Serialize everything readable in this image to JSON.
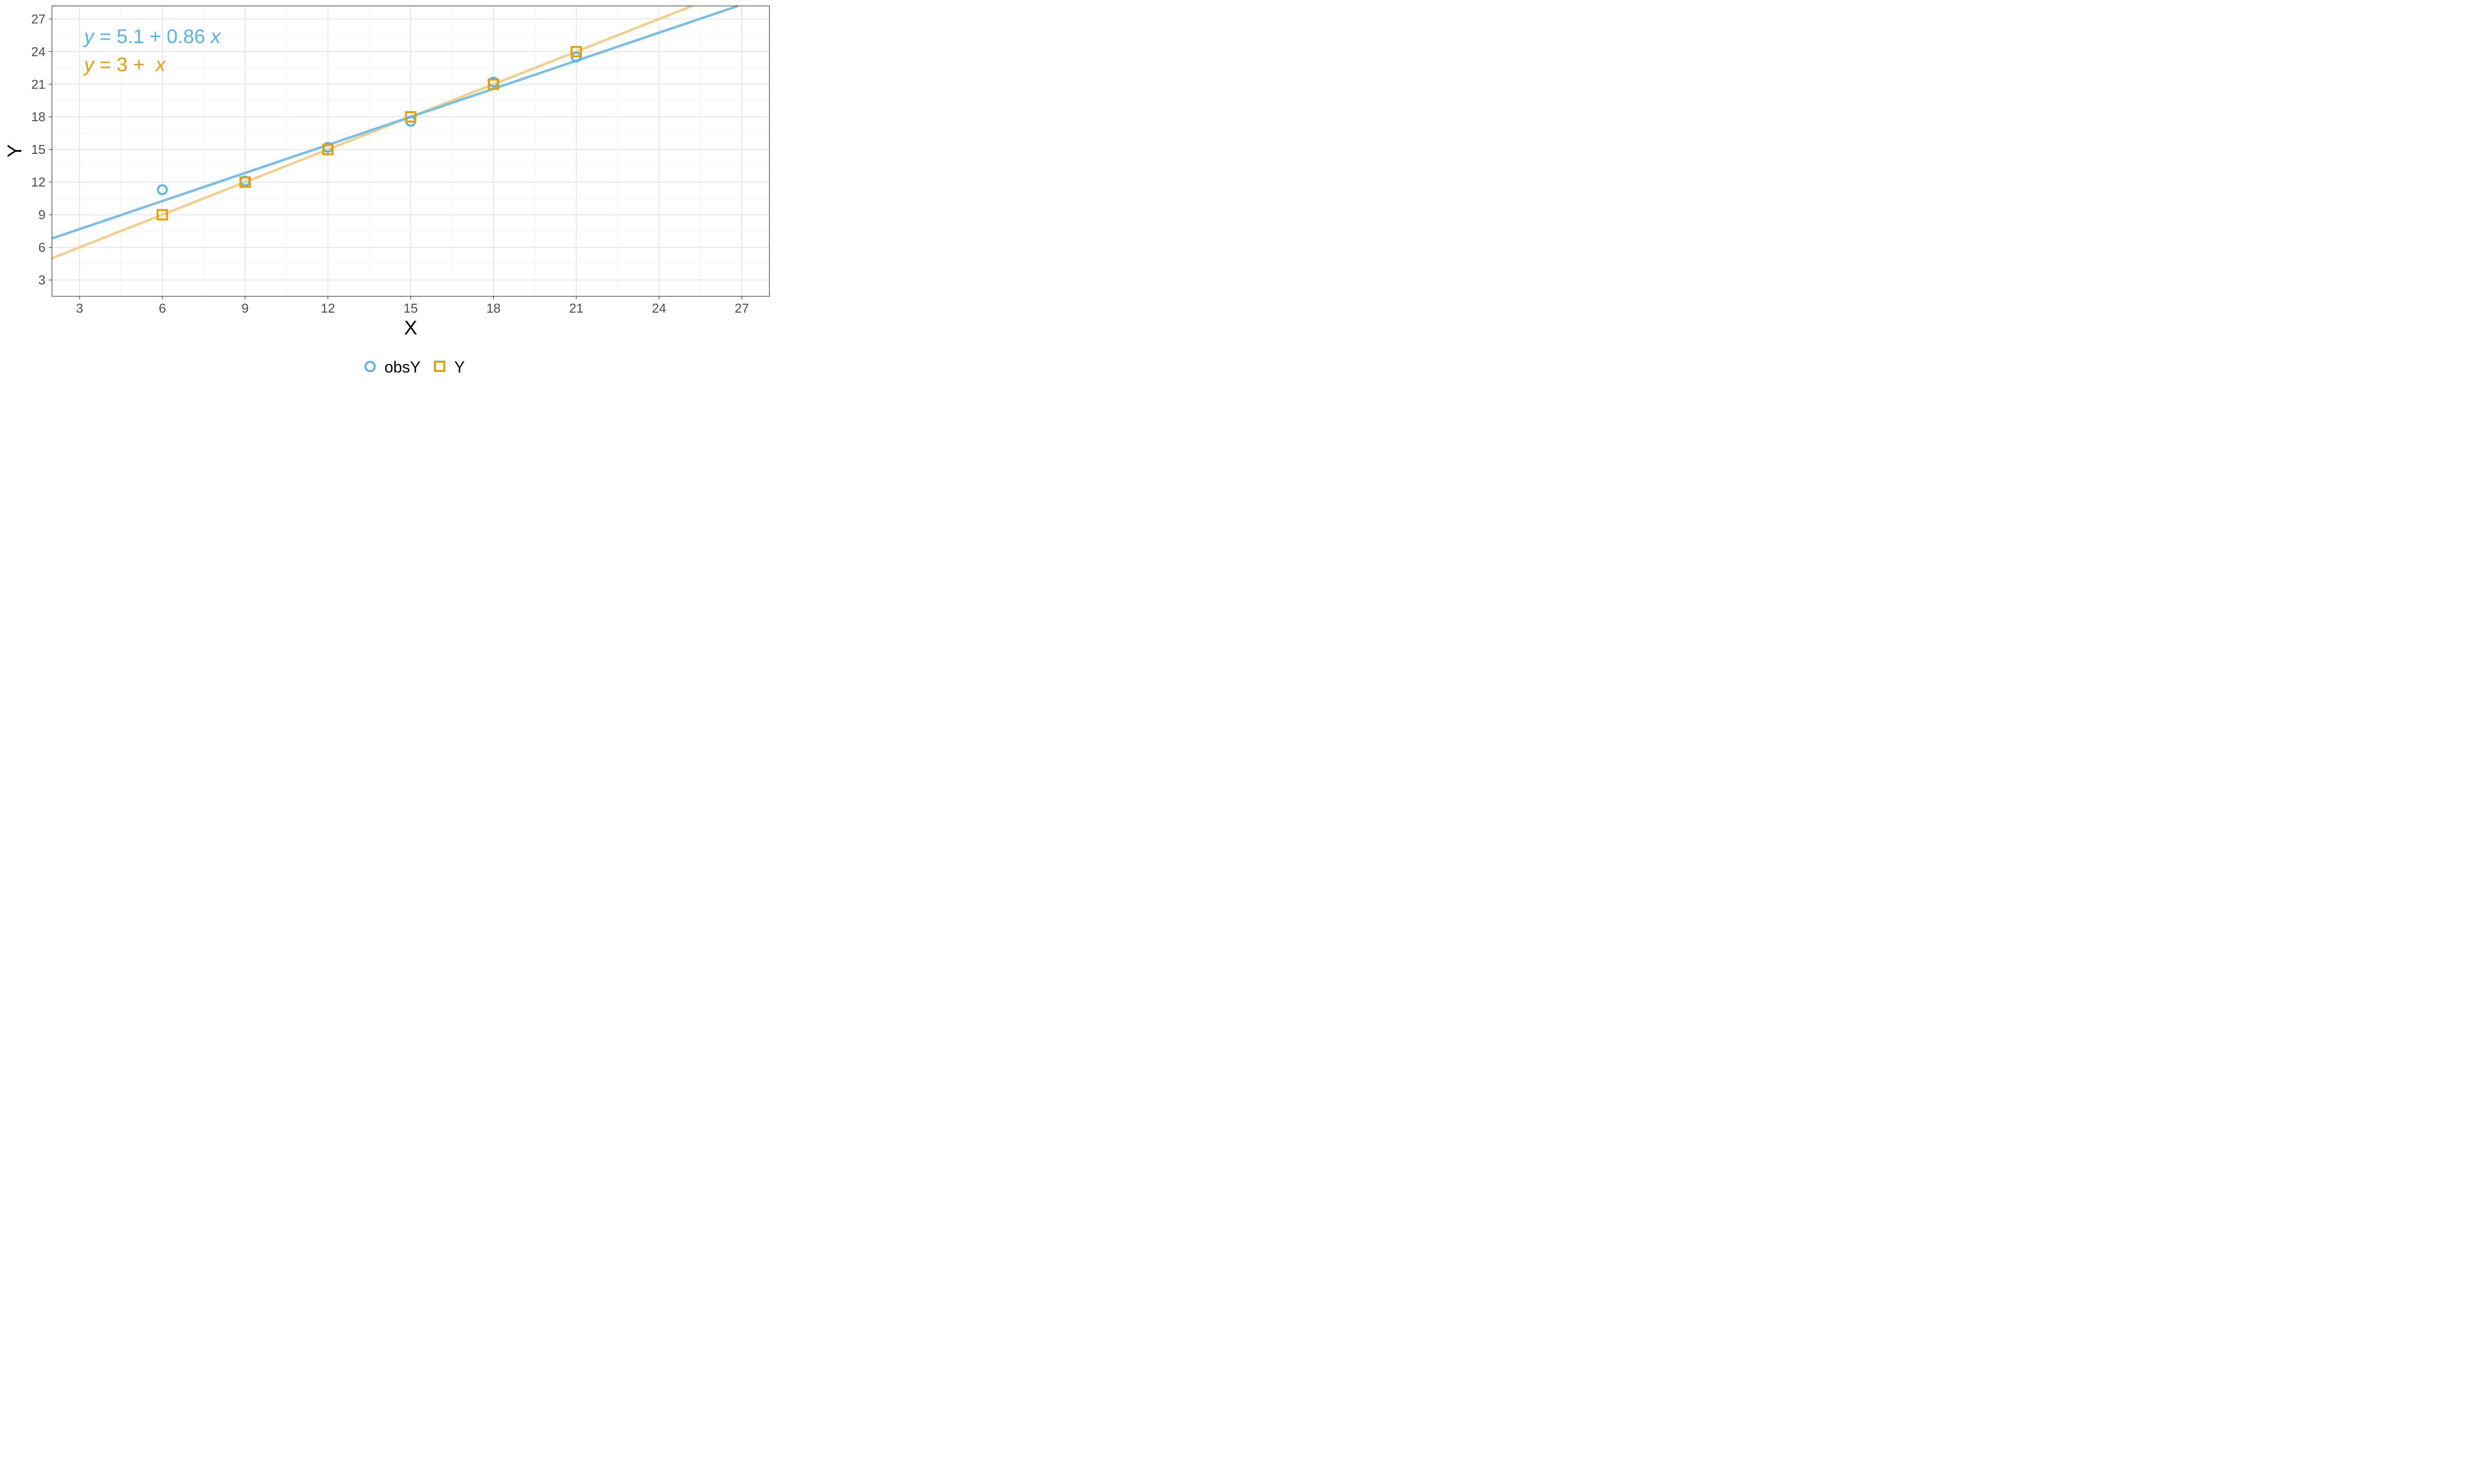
{
  "chart_data": {
    "type": "scatter",
    "xlabel": "X",
    "ylabel": "Y",
    "xlim": [
      2,
      28
    ],
    "ylim": [
      1.5,
      28.2
    ],
    "x_ticks": [
      3,
      6,
      9,
      12,
      15,
      18,
      21,
      24,
      27
    ],
    "y_ticks": [
      3,
      6,
      9,
      12,
      15,
      18,
      21,
      24,
      27
    ],
    "grid": true,
    "legend_position": "bottom",
    "series": [
      {
        "name": "obsY",
        "marker": "circle",
        "color": "#56B4E9",
        "line_color": "#7ABFE6",
        "x": [
          6,
          9,
          12,
          15,
          18,
          21
        ],
        "y": [
          11.3,
          12.1,
          15.2,
          17.6,
          21.2,
          23.5
        ],
        "fit": {
          "intercept": 5.1,
          "slope": 0.86
        }
      },
      {
        "name": "Y",
        "marker": "square",
        "color": "#E69F00",
        "line_color": "#F0CF8F",
        "x": [
          6,
          9,
          12,
          15,
          18,
          21
        ],
        "y": [
          9,
          12,
          15,
          18,
          21,
          24
        ],
        "fit": {
          "intercept": 3,
          "slope": 1
        }
      }
    ],
    "annotations": [
      {
        "y_var": "y",
        "eq": " = 5.1 + 0.86 ",
        "x_var": "x",
        "color": "#56B4E9"
      },
      {
        "y_var": "y",
        "eq": " = 3 +  ",
        "x_var": "x",
        "color": "#E69F00"
      }
    ]
  }
}
